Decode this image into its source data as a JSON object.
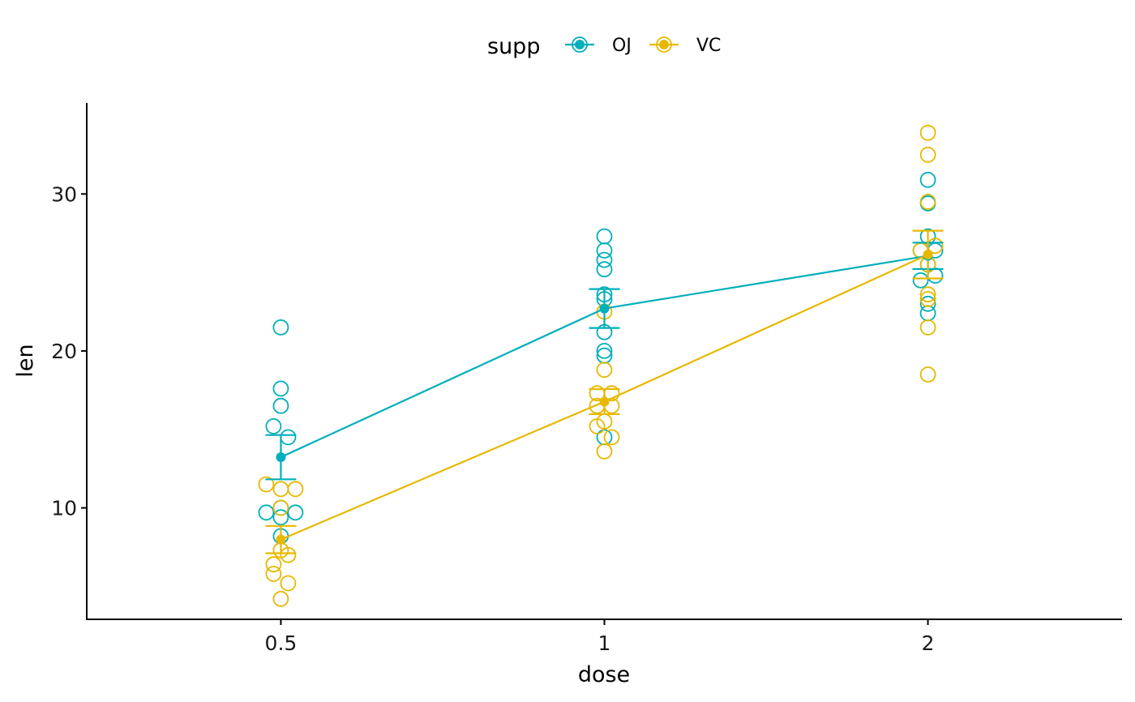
{
  "chart_data": {
    "type": "dotplot",
    "xlabel": "dose",
    "ylabel": "len",
    "categories": [
      "0.5",
      "1",
      "2"
    ],
    "ylim": [
      2.9,
      35.8
    ],
    "yticks": [
      10,
      20,
      30
    ],
    "legend": {
      "title": "supp",
      "position": "top"
    },
    "grid": false,
    "series": [
      {
        "name": "OJ",
        "color": "#00AFBB",
        "values": {
          "0.5": [
            15.2,
            21.5,
            17.6,
            9.7,
            14.5,
            10.0,
            8.2,
            9.4,
            16.5,
            9.7
          ],
          "1": [
            19.7,
            23.3,
            23.6,
            26.4,
            20.0,
            25.2,
            25.8,
            21.2,
            14.5,
            27.3
          ],
          "2": [
            25.5,
            26.4,
            22.4,
            24.5,
            24.8,
            30.9,
            26.4,
            27.3,
            29.4,
            23.0
          ]
        },
        "mean": {
          "0.5": 13.23,
          "1": 22.7,
          "2": 26.06
        },
        "se": {
          "0.5": 1.41,
          "1": 1.24,
          "2": 0.84
        }
      },
      {
        "name": "VC",
        "color": "#E7B800",
        "values": {
          "0.5": [
            4.2,
            11.5,
            7.3,
            5.8,
            6.4,
            10.0,
            11.2,
            11.2,
            5.2,
            7.0
          ],
          "1": [
            16.5,
            16.5,
            15.2,
            17.3,
            22.5,
            17.3,
            13.6,
            14.5,
            18.8,
            15.5
          ],
          "2": [
            23.6,
            18.5,
            33.9,
            25.5,
            26.4,
            32.5,
            26.7,
            21.5,
            23.3,
            29.5
          ]
        },
        "mean": {
          "0.5": 7.98,
          "1": 16.77,
          "2": 26.14
        },
        "se": {
          "0.5": 0.87,
          "1": 0.8,
          "2": 1.52
        }
      }
    ]
  }
}
